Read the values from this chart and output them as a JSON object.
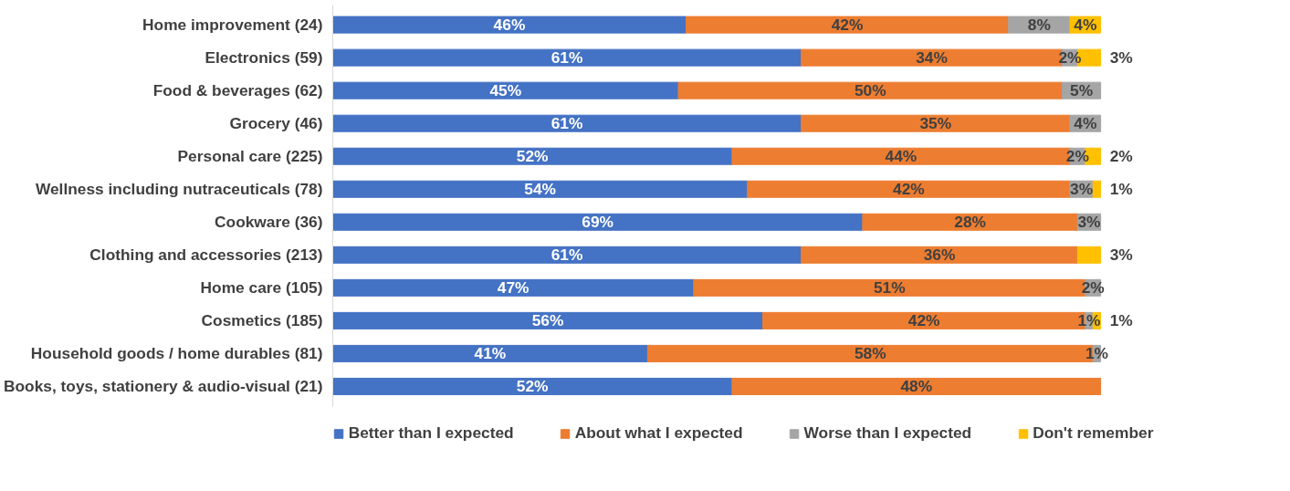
{
  "chart_data": {
    "type": "bar",
    "orientation": "horizontal",
    "stacked": true,
    "legend": "bottom",
    "grid": false,
    "categories": [
      "Home improvement (24)",
      "Electronics (59)",
      "Food & beverages (62)",
      "Grocery (46)",
      "Personal care (225)",
      "Wellness including nutraceuticals (78)",
      "Cookware (36)",
      "Clothing and accessories (213)",
      "Home care (105)",
      "Cosmetics (185)",
      "Household goods / home durables (81)",
      "Books, toys, stationery & audio-visual (21)"
    ],
    "series": [
      {
        "name": "Better than I expected",
        "color": "#4472c4",
        "values": [
          46,
          61,
          45,
          61,
          52,
          54,
          69,
          61,
          47,
          56,
          41,
          52
        ],
        "value_labels": [
          "46%",
          "61%",
          "45%",
          "61%",
          "52%",
          "54%",
          "69%",
          "61%",
          "47%",
          "56%",
          "41%",
          "52%"
        ]
      },
      {
        "name": "About what I expected",
        "color": "#ed7d31",
        "values": [
          42,
          34,
          50,
          35,
          44,
          42,
          28,
          36,
          51,
          42,
          58,
          48
        ],
        "value_labels": [
          "42%",
          "34%",
          "50%",
          "35%",
          "44%",
          "42%",
          "28%",
          "36%",
          "51%",
          "42%",
          "58%",
          "48%"
        ]
      },
      {
        "name": "Worse than I expected",
        "color": "#a5a5a5",
        "values": [
          8,
          2,
          5,
          4,
          2,
          3,
          3,
          null,
          2,
          1,
          1,
          null
        ],
        "value_labels": [
          "8%",
          "2%",
          "5%",
          "4%",
          "2%",
          "3%",
          "3%",
          null,
          "2%",
          "1%",
          "1%",
          null
        ]
      },
      {
        "name": "Don't remember",
        "color": "#ffc000",
        "values": [
          4,
          3,
          null,
          null,
          2,
          1,
          null,
          3,
          null,
          1,
          null,
          null
        ],
        "value_labels": [
          "4%",
          "3%",
          null,
          null,
          "2%",
          "1%",
          null,
          "3%",
          null,
          "1%",
          null,
          null
        ]
      }
    ]
  }
}
